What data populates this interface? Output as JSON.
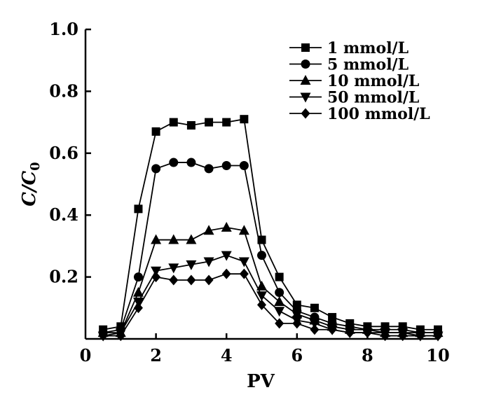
{
  "chart_data": {
    "type": "line",
    "title": "",
    "xlabel": "PV",
    "ylabel": {
      "main": "C/C",
      "sub": "0"
    },
    "xlim": [
      0,
      10
    ],
    "ylim": [
      0,
      1.0
    ],
    "xticks": [
      0,
      2,
      4,
      6,
      8,
      10
    ],
    "xtick_labels": [
      "0",
      "2",
      "4",
      "6",
      "8",
      "10"
    ],
    "yticks": [
      0.2,
      0.4,
      0.6,
      0.8,
      1.0
    ],
    "ytick_labels": [
      "0.2",
      "0.4",
      "0.6",
      "0.8",
      "1.0"
    ],
    "grid": false,
    "legend_position": "top-right",
    "x": [
      0.5,
      1.0,
      1.5,
      2.0,
      2.5,
      3.0,
      3.5,
      4.0,
      4.5,
      5.0,
      5.5,
      6.0,
      6.5,
      7.0,
      7.5,
      8.0,
      8.5,
      9.0,
      9.5,
      10.0
    ],
    "series": [
      {
        "name": "1 mmol/L",
        "marker": "square",
        "values": [
          0.03,
          0.04,
          0.42,
          0.67,
          0.7,
          0.69,
          0.7,
          0.7,
          0.71,
          0.32,
          0.2,
          0.11,
          0.1,
          0.07,
          0.05,
          0.04,
          0.04,
          0.04,
          0.03,
          0.03
        ]
      },
      {
        "name": "5 mmol/L",
        "marker": "circle",
        "values": [
          0.02,
          0.03,
          0.2,
          0.55,
          0.57,
          0.57,
          0.55,
          0.56,
          0.56,
          0.27,
          0.15,
          0.09,
          0.07,
          0.05,
          0.04,
          0.03,
          0.03,
          0.03,
          0.02,
          0.02
        ]
      },
      {
        "name": "10 mmol/L",
        "marker": "triangle-up",
        "values": [
          0.02,
          0.02,
          0.15,
          0.32,
          0.32,
          0.32,
          0.35,
          0.36,
          0.35,
          0.17,
          0.12,
          0.08,
          0.06,
          0.04,
          0.03,
          0.03,
          0.02,
          0.02,
          0.02,
          0.02
        ]
      },
      {
        "name": "50 mmol/L",
        "marker": "triangle-down",
        "values": [
          0.01,
          0.02,
          0.12,
          0.22,
          0.23,
          0.24,
          0.25,
          0.27,
          0.25,
          0.14,
          0.09,
          0.06,
          0.05,
          0.03,
          0.02,
          0.02,
          0.02,
          0.02,
          0.01,
          0.01
        ]
      },
      {
        "name": "100 mmol/L",
        "marker": "diamond",
        "values": [
          0.01,
          0.01,
          0.1,
          0.2,
          0.19,
          0.19,
          0.19,
          0.21,
          0.21,
          0.11,
          0.05,
          0.05,
          0.03,
          0.03,
          0.02,
          0.02,
          0.01,
          0.01,
          0.01,
          0.01
        ]
      }
    ],
    "colors": {
      "line": "#000000",
      "background": "#ffffff"
    }
  }
}
